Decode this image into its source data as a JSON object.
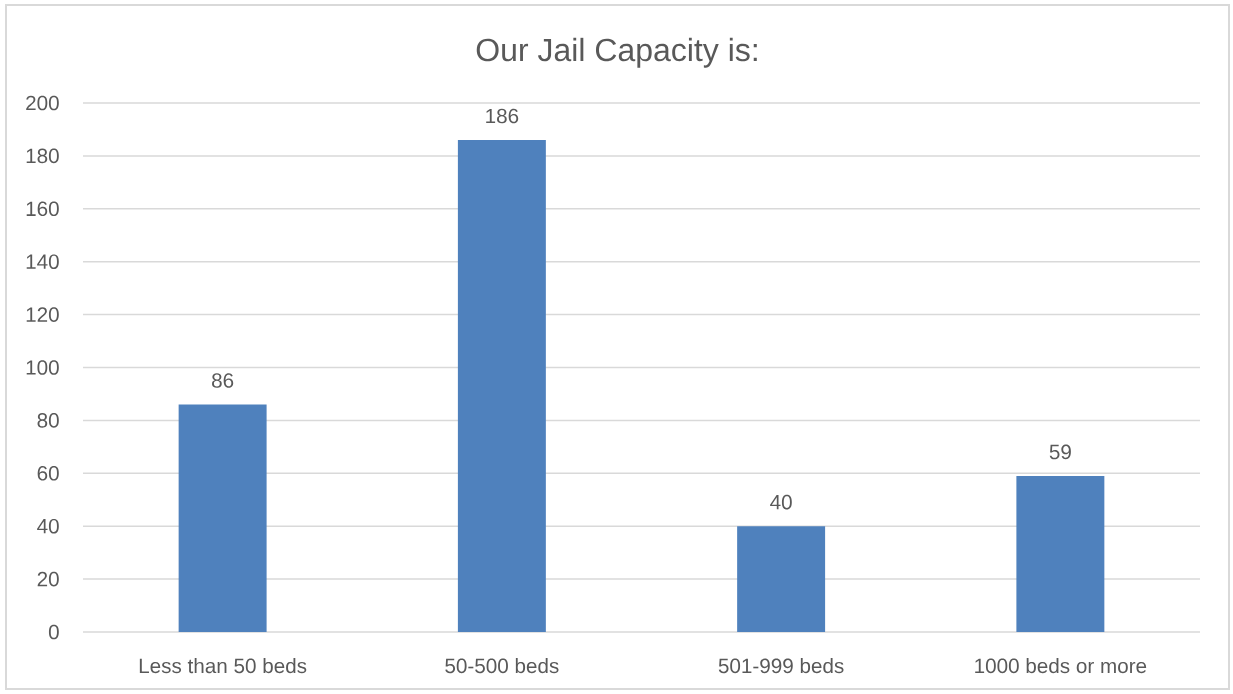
{
  "chart_data": {
    "type": "bar",
    "title": "Our Jail Capacity is:",
    "categories": [
      "Less than 50 beds",
      "50-500 beds",
      "501-999 beds",
      "1000 beds or more"
    ],
    "values": [
      86,
      186,
      40,
      59
    ],
    "color": "#4f81bd",
    "ylim": [
      0,
      200
    ],
    "yticks": [
      0,
      20,
      40,
      60,
      80,
      100,
      120,
      140,
      160,
      180,
      200
    ],
    "grid": "y",
    "data_labels": true
  }
}
